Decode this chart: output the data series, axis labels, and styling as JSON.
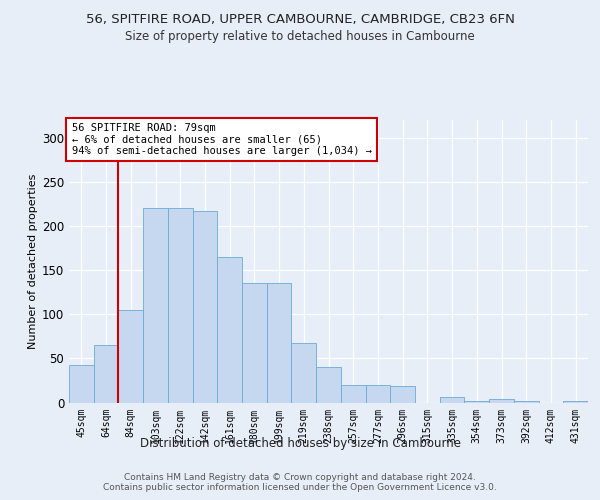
{
  "title1": "56, SPITFIRE ROAD, UPPER CAMBOURNE, CAMBRIDGE, CB23 6FN",
  "title2": "Size of property relative to detached houses in Cambourne",
  "xlabel": "Distribution of detached houses by size in Cambourne",
  "ylabel": "Number of detached properties",
  "bar_labels": [
    "45sqm",
    "64sqm",
    "84sqm",
    "103sqm",
    "122sqm",
    "142sqm",
    "161sqm",
    "180sqm",
    "199sqm",
    "219sqm",
    "238sqm",
    "257sqm",
    "277sqm",
    "296sqm",
    "315sqm",
    "335sqm",
    "354sqm",
    "373sqm",
    "392sqm",
    "412sqm",
    "431sqm"
  ],
  "bar_values": [
    42,
    65,
    105,
    220,
    220,
    217,
    165,
    135,
    135,
    67,
    40,
    20,
    20,
    19,
    0,
    6,
    2,
    4,
    2,
    0,
    2
  ],
  "bar_color": "#c5d8f0",
  "bar_edge_color": "#6aaad4",
  "vline_color": "#cc0000",
  "annotation_text": "56 SPITFIRE ROAD: 79sqm\n← 6% of detached houses are smaller (65)\n94% of semi-detached houses are larger (1,034) →",
  "annotation_box_color": "#ffffff",
  "annotation_box_edge": "#cc0000",
  "ylim": [
    0,
    320
  ],
  "yticks": [
    0,
    50,
    100,
    150,
    200,
    250,
    300
  ],
  "footer_text": "Contains HM Land Registry data © Crown copyright and database right 2024.\nContains public sector information licensed under the Open Government Licence v3.0.",
  "bg_color": "#e8eef8",
  "plot_bg_color": "#e8eef8"
}
